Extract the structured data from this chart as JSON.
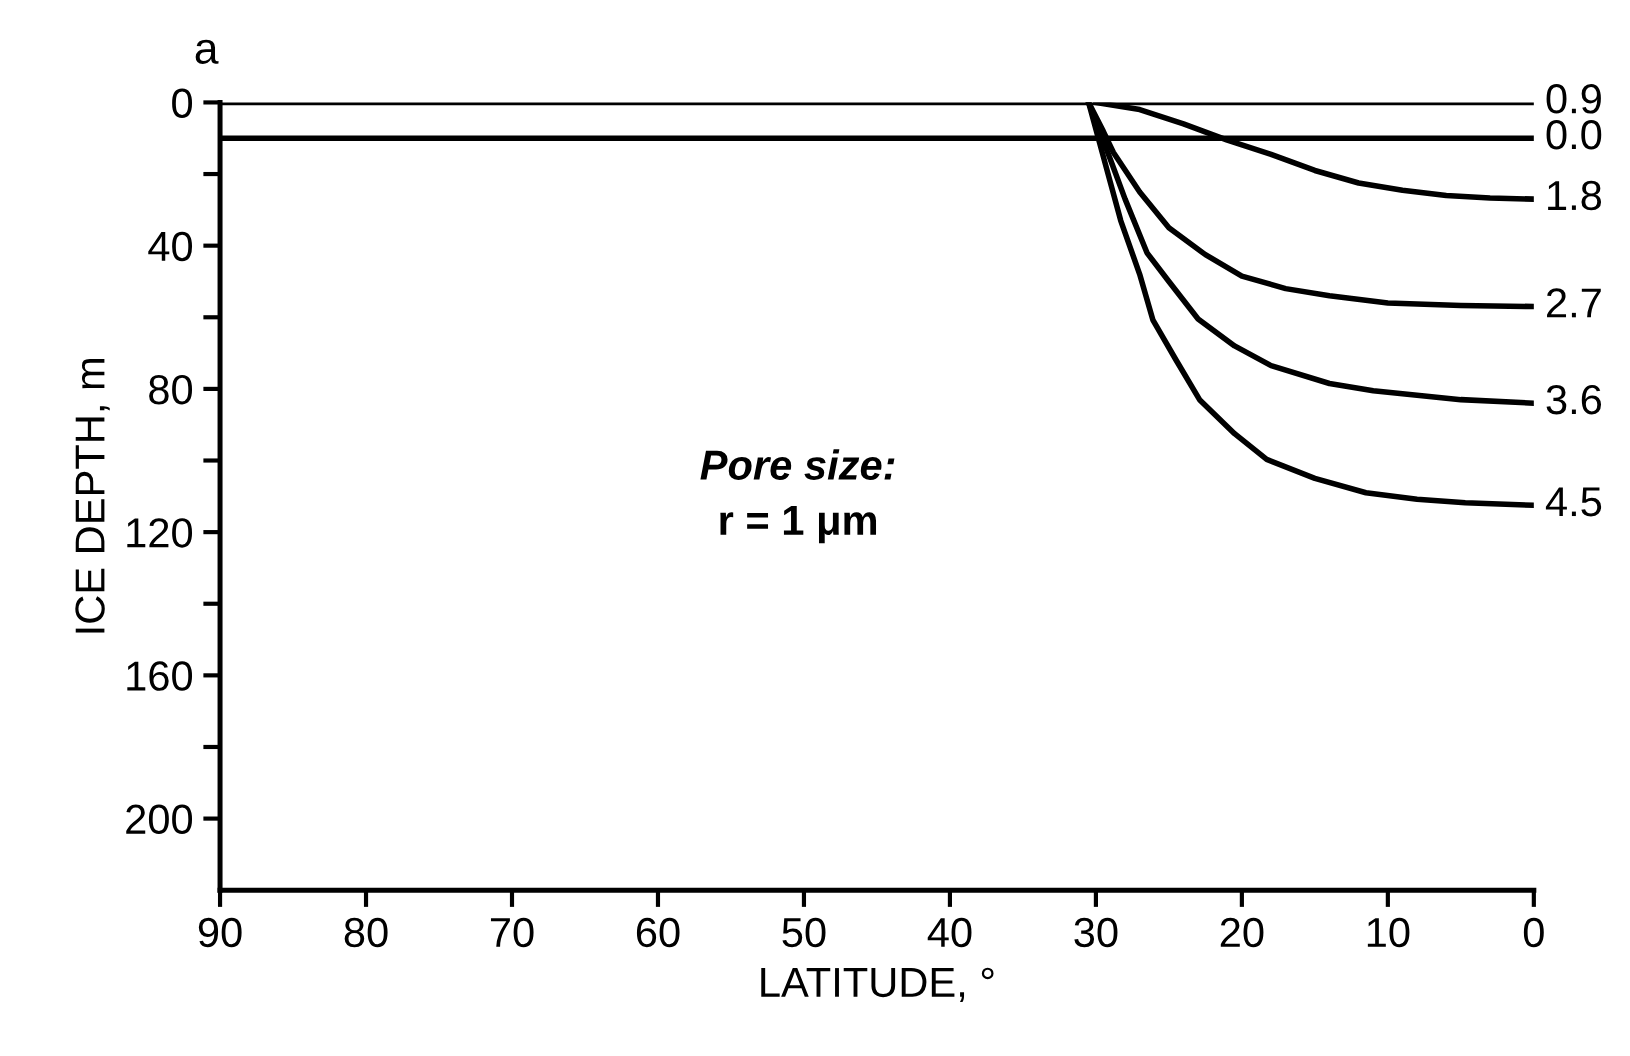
{
  "chart_data": {
    "type": "line",
    "title": "a",
    "xlabel": "LATITUDE, °",
    "ylabel": "ICE DEPTH, m",
    "annotations": [
      "Pore size:",
      "r = 1 μm"
    ],
    "xlim": [
      90,
      0
    ],
    "xticks": [
      90,
      80,
      70,
      60,
      50,
      40,
      30,
      20,
      10,
      0
    ],
    "ylim": [
      220,
      0
    ],
    "yticks": [
      0,
      {
        "value": 20,
        "label": null
      },
      40,
      {
        "value": 60,
        "label": null
      },
      80,
      {
        "value": 100,
        "label": null
      },
      120,
      {
        "value": 140,
        "label": null
      },
      160,
      {
        "value": 180,
        "label": null
      },
      200
    ],
    "grid": false,
    "legend": false,
    "marker": "none",
    "line_style": "solid",
    "series": [
      {
        "name": "0.9",
        "color": "#000000",
        "x": [
          90,
          0
        ],
        "values": [
          0,
          0
        ]
      },
      {
        "name": "0.0",
        "color": "#000000",
        "x": [
          90,
          0
        ],
        "values": [
          10,
          10
        ]
      },
      {
        "name": "1.8",
        "color": "#000000",
        "x": [
          30,
          27,
          24,
          21,
          18,
          15,
          12,
          9,
          6,
          3,
          0
        ],
        "values": [
          0,
          2,
          6,
          10.5,
          14.5,
          19,
          22.5,
          24.5,
          26,
          26.7,
          27
        ]
      },
      {
        "name": "2.7",
        "color": "#000000",
        "x": [
          30.5,
          29.5,
          28.8,
          27,
          25,
          22.5,
          20,
          17,
          14,
          10,
          5,
          0
        ],
        "values": [
          0,
          8,
          14,
          25,
          35,
          42.5,
          48.5,
          52,
          54,
          56,
          56.7,
          57
        ]
      },
      {
        "name": "3.6",
        "color": "#000000",
        "x": [
          30.5,
          29,
          28,
          26.5,
          25,
          23,
          20.5,
          18,
          14,
          11,
          5,
          0
        ],
        "values": [
          0,
          16,
          27,
          42,
          50,
          60.5,
          68,
          73.5,
          78.5,
          80.5,
          83,
          84
        ]
      },
      {
        "name": "4.5",
        "color": "#000000",
        "x": [
          30.5,
          29.5,
          28.3,
          27,
          26.1,
          24.5,
          22.9,
          20.5,
          18.3,
          15,
          11.5,
          8,
          4.7,
          0
        ],
        "values": [
          0,
          15,
          33,
          48,
          60.7,
          72,
          83,
          92.5,
          99.7,
          105,
          109,
          110.8,
          111.8,
          112.5
        ]
      }
    ]
  }
}
